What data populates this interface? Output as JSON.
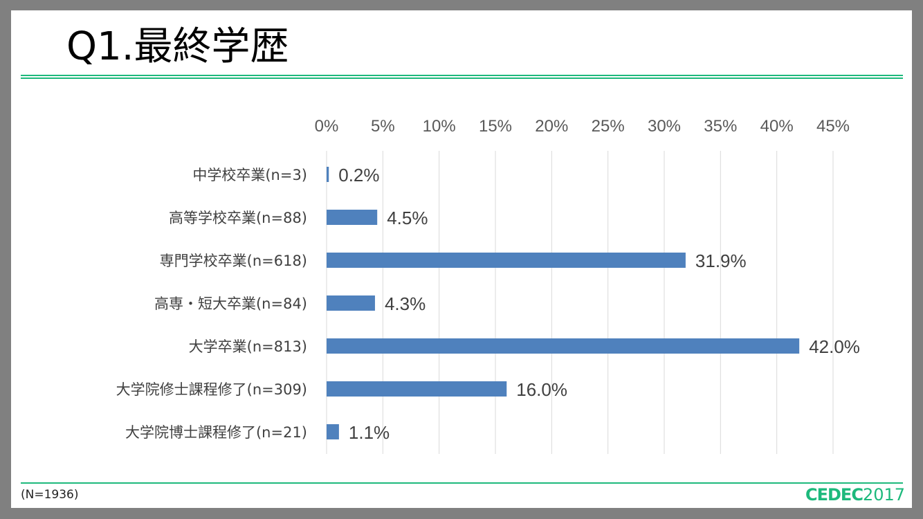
{
  "slide": {
    "title": "Q1.最終学歴",
    "note": "(N=1936)",
    "logo": "CEDEC2017",
    "logo_name": "CEDEC",
    "logo_year": "2017",
    "accent_color": "#1db97c"
  },
  "chart_data": {
    "type": "bar",
    "orientation": "horizontal",
    "categories": [
      "中学校卒業(n=3)",
      "高等学校卒業(n=88)",
      "専門学校卒業(n=618)",
      "高専・短大卒業(n=84)",
      "大学卒業(n=813)",
      "大学院修士課程修了(n=309)",
      "大学院博士課程修了(n=21)"
    ],
    "values": [
      0.2,
      4.5,
      31.9,
      4.3,
      42.0,
      16.0,
      1.1
    ],
    "data_labels": [
      "0.2%",
      "4.5%",
      "31.9%",
      "4.3%",
      "42.0%",
      "16.0%",
      "1.1%"
    ],
    "xlim": [
      0,
      45
    ],
    "xticks": [
      0,
      5,
      10,
      15,
      20,
      25,
      30,
      35,
      40,
      45
    ],
    "xtick_labels": [
      "0%",
      "5%",
      "10%",
      "15%",
      "20%",
      "25%",
      "30%",
      "35%",
      "40%",
      "45%"
    ],
    "axis_position": "top",
    "grid": true,
    "bar_color": "#4f81bd"
  }
}
